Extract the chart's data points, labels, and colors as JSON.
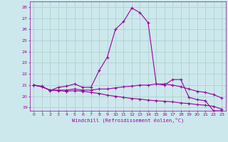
{
  "xlabel": "Windchill (Refroidissement éolien,°C)",
  "background_color": "#cce8ec",
  "line_color": "#9b009b",
  "grid_color": "#aacccc",
  "xlim": [
    -0.5,
    23.5
  ],
  "ylim": [
    18.7,
    28.5
  ],
  "yticks": [
    19,
    20,
    21,
    22,
    23,
    24,
    25,
    26,
    27,
    28
  ],
  "xticks": [
    0,
    1,
    2,
    3,
    4,
    5,
    6,
    7,
    8,
    9,
    10,
    11,
    12,
    13,
    14,
    15,
    16,
    17,
    18,
    19,
    20,
    21,
    22,
    23
  ],
  "xtick_labels": [
    "0",
    "1",
    "2",
    "3",
    "4",
    "5",
    "6",
    "7",
    "8",
    "9",
    "10",
    "11",
    "12",
    "13",
    "14",
    "15",
    "16",
    "17",
    "18",
    "19",
    "20",
    "21",
    "22",
    "23"
  ],
  "series": [
    {
      "x": [
        0,
        1,
        2,
        3,
        4,
        5,
        6,
        7,
        8,
        9,
        10,
        11,
        12,
        13,
        14,
        15,
        16,
        17,
        18,
        19,
        20,
        21,
        22,
        23
      ],
      "y": [
        21.0,
        20.9,
        20.5,
        20.8,
        20.9,
        21.1,
        20.8,
        20.8,
        22.3,
        23.5,
        26.0,
        26.7,
        27.9,
        27.5,
        26.6,
        21.1,
        21.0,
        21.5,
        21.5,
        19.9,
        19.7,
        19.6,
        18.7,
        18.7
      ]
    },
    {
      "x": [
        0,
        1,
        2,
        3,
        4,
        5,
        6,
        7,
        8,
        9,
        10,
        11,
        12,
        13,
        14,
        15,
        16,
        17,
        18,
        19,
        20,
        21,
        22,
        23
      ],
      "y": [
        21.0,
        20.85,
        20.55,
        20.55,
        20.55,
        20.65,
        20.55,
        20.55,
        20.65,
        20.65,
        20.75,
        20.85,
        20.9,
        21.0,
        21.0,
        21.1,
        21.1,
        21.0,
        20.85,
        20.65,
        20.45,
        20.35,
        20.15,
        19.85
      ]
    },
    {
      "x": [
        0,
        1,
        2,
        3,
        4,
        5,
        6,
        7,
        8,
        9,
        10,
        11,
        12,
        13,
        14,
        15,
        16,
        17,
        18,
        19,
        20,
        21,
        22,
        23
      ],
      "y": [
        21.0,
        20.85,
        20.55,
        20.5,
        20.45,
        20.5,
        20.45,
        20.35,
        20.25,
        20.1,
        20.0,
        19.9,
        19.8,
        19.75,
        19.65,
        19.6,
        19.55,
        19.5,
        19.4,
        19.35,
        19.25,
        19.2,
        19.1,
        18.85
      ]
    }
  ]
}
